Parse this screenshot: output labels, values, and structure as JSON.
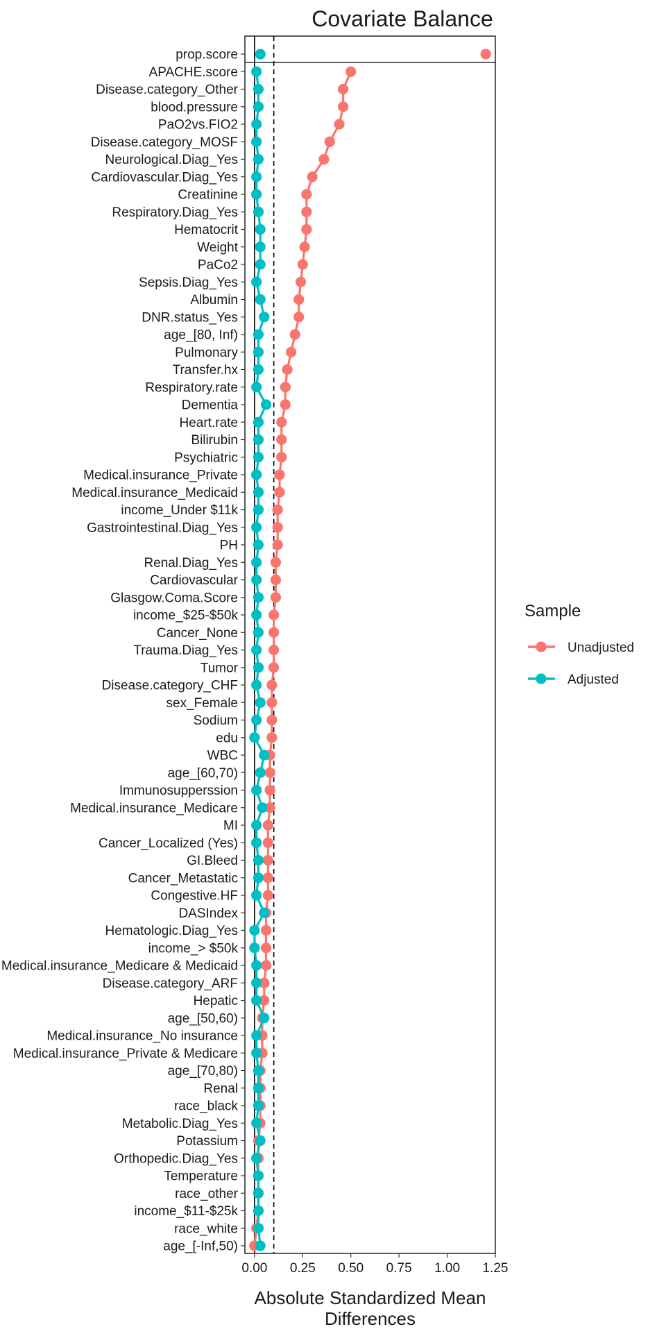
{
  "chart_data": {
    "type": "scatter",
    "title": "Covariate Balance",
    "xlabel": [
      "Absolute Standardized Mean",
      "Differences"
    ],
    "ylabel": "",
    "xlim": [
      -0.05,
      1.25
    ],
    "x_ticks": [
      0.0,
      0.25,
      0.5,
      0.75,
      1.0,
      1.25
    ],
    "x_tick_labels": [
      "0.00",
      "0.25",
      "0.50",
      "0.75",
      "1.00",
      "1.25"
    ],
    "reference_lines": [
      0,
      0.1
    ],
    "grid": false,
    "legend": {
      "title": "Sample",
      "placement": "right"
    },
    "series": [
      {
        "name": "Unadjusted",
        "color": "#F8766D"
      },
      {
        "name": "Adjusted",
        "color": "#00BFC4"
      }
    ],
    "categories": [
      "prop.score",
      "APACHE.score",
      "Disease.category_Other",
      "blood.pressure",
      "PaO2vs.FIO2",
      "Disease.category_MOSF",
      "Neurological.Diag_Yes",
      "Cardiovascular.Diag_Yes",
      "Creatinine",
      "Respiratory.Diag_Yes",
      "Hematocrit",
      "Weight",
      "PaCo2",
      "Sepsis.Diag_Yes",
      "Albumin",
      "DNR.status_Yes",
      "age_[80, Inf)",
      "Pulmonary",
      "Transfer.hx",
      "Respiratory.rate",
      "Dementia",
      "Heart.rate",
      "Bilirubin",
      "Psychiatric",
      "Medical.insurance_Private",
      "Medical.insurance_Medicaid",
      "income_Under $11k",
      "Gastrointestinal.Diag_Yes",
      "PH",
      "Renal.Diag_Yes",
      "Cardiovascular",
      "Glasgow.Coma.Score",
      "income_$25-$50k",
      "Cancer_None",
      "Trauma.Diag_Yes",
      "Tumor",
      "Disease.category_CHF",
      "sex_Female",
      "Sodium",
      "edu",
      "WBC",
      "age_[60,70)",
      "Immunosupperssion",
      "Medical.insurance_Medicare",
      "MI",
      "Cancer_Localized (Yes)",
      "GI.Bleed",
      "Cancer_Metastatic",
      "Congestive.HF",
      "DASIndex",
      "Hematologic.Diag_Yes",
      "income_> $50k",
      "Medical.insurance_Medicare & Medicaid",
      "Disease.category_ARF",
      "Hepatic",
      "age_[50,60)",
      "Medical.insurance_No insurance",
      "Medical.insurance_Private & Medicare",
      "age_[70,80)",
      "Renal",
      "race_black",
      "Metabolic.Diag_Yes",
      "Potassium",
      "Orthopedic.Diag_Yes",
      "Temperature",
      "race_other",
      "income_$11-$25k",
      "race_white",
      "age_[-Inf,50)"
    ],
    "unadjusted": [
      1.2,
      0.5,
      0.46,
      0.46,
      0.44,
      0.39,
      0.36,
      0.3,
      0.27,
      0.27,
      0.27,
      0.26,
      0.25,
      0.24,
      0.23,
      0.23,
      0.21,
      0.19,
      0.17,
      0.16,
      0.16,
      0.14,
      0.14,
      0.14,
      0.13,
      0.13,
      0.12,
      0.12,
      0.12,
      0.11,
      0.11,
      0.11,
      0.1,
      0.1,
      0.1,
      0.1,
      0.09,
      0.09,
      0.09,
      0.09,
      0.08,
      0.08,
      0.08,
      0.08,
      0.07,
      0.07,
      0.07,
      0.07,
      0.07,
      0.06,
      0.06,
      0.06,
      0.06,
      0.05,
      0.05,
      0.04,
      0.04,
      0.04,
      0.03,
      0.03,
      0.03,
      0.03,
      0.02,
      0.02,
      0.02,
      0.02,
      0.02,
      0.01,
      0.0
    ],
    "adjusted": [
      0.03,
      0.01,
      0.02,
      0.02,
      0.01,
      0.01,
      0.02,
      0.01,
      0.01,
      0.02,
      0.03,
      0.03,
      0.03,
      0.01,
      0.03,
      0.05,
      0.02,
      0.02,
      0.02,
      0.01,
      0.06,
      0.02,
      0.02,
      0.02,
      0.01,
      0.02,
      0.02,
      0.01,
      0.02,
      0.01,
      0.01,
      0.02,
      0.01,
      0.02,
      0.01,
      0.02,
      0.01,
      0.03,
      0.01,
      0.0,
      0.05,
      0.03,
      0.01,
      0.04,
      0.01,
      0.01,
      0.02,
      0.02,
      0.01,
      0.05,
      0.0,
      0.0,
      0.01,
      0.01,
      0.01,
      0.05,
      0.01,
      0.01,
      0.02,
      0.02,
      0.02,
      0.01,
      0.03,
      0.01,
      0.02,
      0.02,
      0.02,
      0.02,
      0.03
    ]
  }
}
